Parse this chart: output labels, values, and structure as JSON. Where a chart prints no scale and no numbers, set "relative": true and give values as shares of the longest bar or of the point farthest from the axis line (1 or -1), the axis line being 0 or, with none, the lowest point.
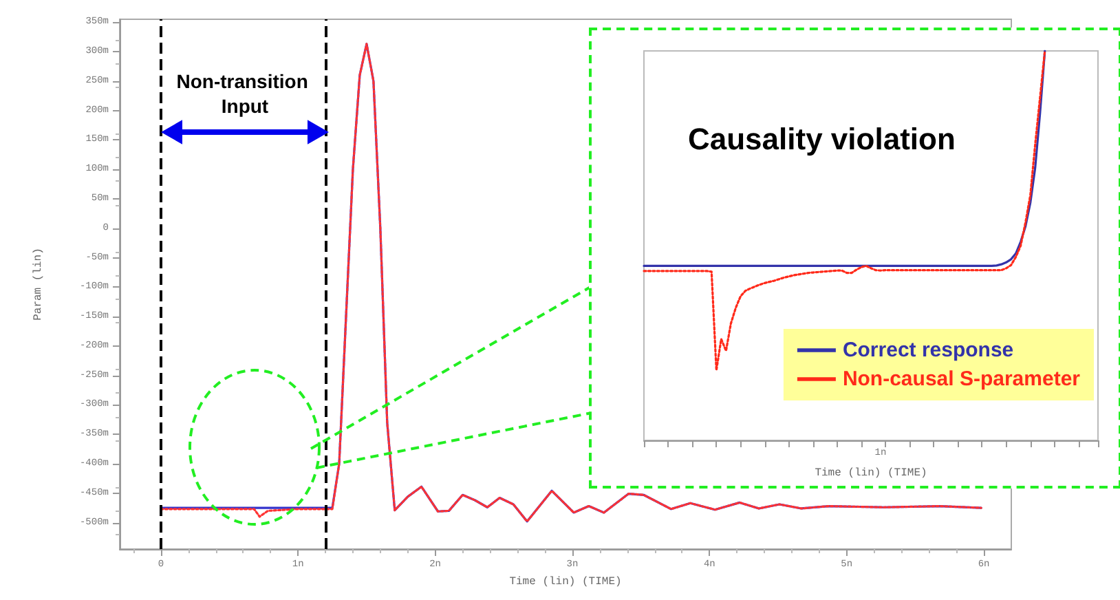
{
  "chart_data": [
    {
      "type": "line",
      "xlabel": "Time (lin) (TIME)",
      "ylabel": "Param (lin)",
      "xlim": [
        -0.3,
        6.2
      ],
      "ylim": [
        -545,
        355
      ],
      "xticks": [
        0,
        {
          "value": 1,
          "label": "1n"
        },
        {
          "value": 2,
          "label": "2n"
        },
        {
          "value": 3,
          "label": "3n"
        },
        {
          "value": 4,
          "label": "4n"
        },
        {
          "value": 5,
          "label": "5n"
        },
        {
          "value": 6,
          "label": "6n"
        }
      ],
      "yticks": [
        {
          "value": -500,
          "label": "-500m"
        },
        {
          "value": -450,
          "label": "-450m"
        },
        {
          "value": -400,
          "label": "-400m"
        },
        {
          "value": -350,
          "label": "-350m"
        },
        {
          "value": -300,
          "label": "-300m"
        },
        {
          "value": -250,
          "label": "-250m"
        },
        {
          "value": -200,
          "label": "-200m"
        },
        {
          "value": -150,
          "label": "-150m"
        },
        {
          "value": -100,
          "label": "-100m"
        },
        {
          "value": -50,
          "label": "-50m"
        },
        0,
        {
          "value": 50,
          "label": "50m"
        },
        {
          "value": 100,
          "label": "100m"
        },
        {
          "value": 150,
          "label": "150m"
        },
        {
          "value": 200,
          "label": "200m"
        },
        {
          "value": 250,
          "label": "250m"
        },
        {
          "value": 300,
          "label": "300m"
        },
        {
          "value": 350,
          "label": "350m"
        }
      ],
      "grid": false,
      "marker": "none",
      "annotations": [
        "Non-transition Input"
      ],
      "ref_lines": [
        {
          "axis": "x",
          "value": 0,
          "color": "#000000",
          "line_style": "dashed"
        },
        {
          "axis": "x",
          "value": 1.2,
          "color": "#000000",
          "line_style": "dashed"
        }
      ],
      "series": [
        {
          "color": "#3333cc",
          "line_style": "solid",
          "x": [
            0,
            0.5,
            1.0,
            1.25,
            1.3,
            1.35,
            1.4,
            1.45,
            1.5,
            1.55,
            1.6,
            1.65,
            1.705,
            1.8,
            1.9,
            2.02,
            2.1,
            2.2,
            2.29,
            2.38,
            2.47,
            2.57,
            2.67,
            2.85,
            3.01,
            3.12,
            3.23,
            3.41,
            3.52,
            3.72,
            3.86,
            4.04,
            4.22,
            4.36,
            4.51,
            4.67,
            4.87,
            5.27,
            5.68,
            5.98
          ],
          "values": [
            -475,
            -475,
            -475,
            -475,
            -400,
            -150,
            100,
            260,
            313,
            250,
            0,
            -330,
            -479,
            -456,
            -439,
            -481,
            -480,
            -453,
            -462,
            -474,
            -458,
            -469,
            -498,
            -446,
            -483,
            -472,
            -483,
            -451,
            -453,
            -477,
            -467,
            -478,
            -466,
            -476,
            -469,
            -476,
            -472,
            -474,
            -472,
            -475
          ]
        },
        {
          "color": "#ff3333",
          "line_style": "dotted",
          "x": [
            0,
            0.5,
            0.68,
            0.72,
            0.78,
            1.0,
            1.25,
            1.3,
            1.35,
            1.4,
            1.45,
            1.5,
            1.55,
            1.6,
            1.65,
            1.705,
            1.8,
            1.9,
            2.02,
            2.1,
            2.2,
            2.29,
            2.38,
            2.47,
            2.57,
            2.67,
            2.85,
            3.01,
            3.12,
            3.23,
            3.41,
            3.52,
            3.72,
            3.86,
            4.04,
            4.22,
            4.36,
            4.51,
            4.67,
            4.87,
            5.27,
            5.68,
            5.98
          ],
          "values": [
            -477,
            -477,
            -477,
            -490,
            -480,
            -477,
            -477,
            -400,
            -150,
            100,
            260,
            313,
            250,
            0,
            -330,
            -479,
            -456,
            -439,
            -481,
            -480,
            -453,
            -462,
            -474,
            -458,
            -469,
            -498,
            -446,
            -483,
            -472,
            -483,
            -451,
            -453,
            -477,
            -467,
            -478,
            -466,
            -476,
            -469,
            -476,
            -472,
            -474,
            -472,
            -475
          ]
        }
      ]
    },
    {
      "type": "line",
      "xlabel": "Time (lin) (TIME)",
      "relative": true,
      "grid": false,
      "categories": [
        null,
        null,
        null,
        null,
        null,
        null,
        null,
        null,
        null,
        null,
        null,
        null,
        null,
        null,
        null,
        null,
        null,
        null,
        null,
        null,
        null,
        null,
        null,
        null,
        null,
        null,
        null,
        null,
        null,
        null,
        null,
        null,
        null,
        null,
        null,
        null,
        null,
        null,
        null,
        null,
        null,
        null,
        null,
        null,
        null,
        null,
        null,
        null,
        null,
        null,
        null,
        null,
        null,
        null,
        null,
        null,
        null,
        null,
        null,
        null,
        null,
        null,
        null,
        null,
        null,
        null,
        null,
        null,
        null,
        null,
        null,
        null,
        null,
        null,
        null,
        null,
        null,
        null,
        null,
        null,
        null,
        null,
        null,
        null,
        null,
        null,
        null,
        null,
        null,
        null,
        null,
        null,
        null,
        null,
        null
      ],
      "marker": "none",
      "legend": "bottom right",
      "annotations": [
        "Causality violation",
        "1n"
      ],
      "series": [
        {
          "name": "Correct response",
          "color": "#3333aa",
          "line_style": "solid",
          "values": [
            0.448,
            0.448,
            0.448,
            0.448,
            0.448,
            0.448,
            0.448,
            0.448,
            0.448,
            0.448,
            0.448,
            0.448,
            0.448,
            0.448,
            0.448,
            0.448,
            0.448,
            0.448,
            0.448,
            0.448,
            0.448,
            0.448,
            0.448,
            0.448,
            0.448,
            0.448,
            0.448,
            0.448,
            0.448,
            0.448,
            0.448,
            0.448,
            0.448,
            0.448,
            0.448,
            0.448,
            0.448,
            0.448,
            0.448,
            0.448,
            0.448,
            0.448,
            0.448,
            0.448,
            0.448,
            0.448,
            0.448,
            0.448,
            0.448,
            0.448,
            0.448,
            0.448,
            0.448,
            0.448,
            0.448,
            0.448,
            0.448,
            0.448,
            0.448,
            0.448,
            0.448,
            0.448,
            0.448,
            0.448,
            0.448,
            0.448,
            0.448,
            0.448,
            0.448,
            0.448,
            0.448,
            0.448,
            0.448,
            0.449,
            0.452,
            0.457,
            0.465,
            0.48,
            0.51,
            0.55,
            0.61,
            0.7,
            0.84,
            1.0,
            null,
            null,
            null,
            null,
            null,
            null,
            null,
            null,
            null,
            null,
            null
          ]
        },
        {
          "name": "Non-causal S-parameter",
          "color": "#ff2a1a",
          "line_style": "dotted",
          "values": [
            0.435,
            0.435,
            0.435,
            0.435,
            0.435,
            0.435,
            0.435,
            0.435,
            0.435,
            0.435,
            0.435,
            0.435,
            0.435,
            0.435,
            0.433,
            0.18,
            0.26,
            0.23,
            0.3,
            0.34,
            0.37,
            0.384,
            0.39,
            0.395,
            0.4,
            0.404,
            0.407,
            0.41,
            0.414,
            0.418,
            0.421,
            0.424,
            0.426,
            0.428,
            0.43,
            0.431,
            0.432,
            0.433,
            0.434,
            0.435,
            0.436,
            0.436,
            0.43,
            0.43,
            0.438,
            0.445,
            0.448,
            0.442,
            0.437,
            0.436,
            0.437,
            0.437,
            0.437,
            0.437,
            0.437,
            0.437,
            0.437,
            0.437,
            0.437,
            0.437,
            0.437,
            0.437,
            0.437,
            0.437,
            0.437,
            0.437,
            0.437,
            0.437,
            0.437,
            0.437,
            0.437,
            0.437,
            0.437,
            0.437,
            0.437,
            0.442,
            0.45,
            0.471,
            0.5,
            0.56,
            0.63,
            0.76,
            0.88,
            1.0,
            null,
            null,
            null,
            null,
            null,
            null,
            null,
            null,
            null,
            null,
            null
          ]
        }
      ]
    }
  ]
}
